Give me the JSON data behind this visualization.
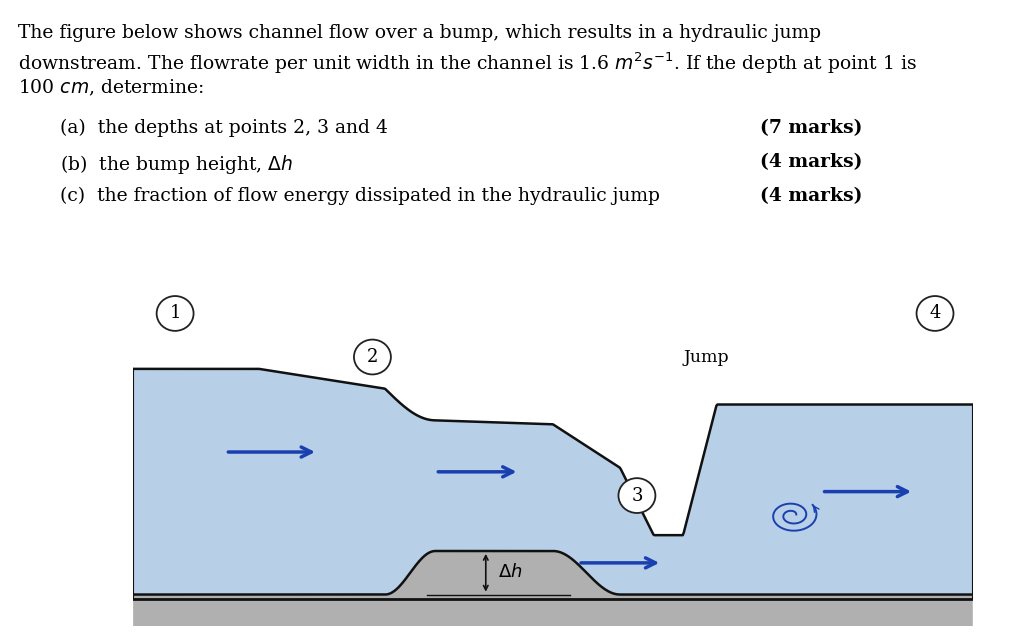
{
  "water_color": "#b8cfe8",
  "floor_color": "#b0b0b0",
  "arrow_color": "#1a40b0",
  "line_color": "#111111",
  "background_color": "#ffffff",
  "para_line1": "The figure below shows channel flow over a bump, which results in a hydraulic jump",
  "para_line2": "downstream. The flowrate per unit width in the channel is 1.6 $m^2s^{-1}$. If the depth at point 1 is",
  "para_line3": "100 $cm$, determine:",
  "part_a_text": "(a)  the depths at points 2, 3 and 4",
  "part_a_marks": "(7 marks)",
  "part_b_text": "(b)  the bump height, $\\Delta h$",
  "part_b_marks": "(4 marks)",
  "part_c_text": "(c)  the fraction of flow energy dissipated in the hydraulic jump",
  "part_c_marks": "(4 marks)"
}
